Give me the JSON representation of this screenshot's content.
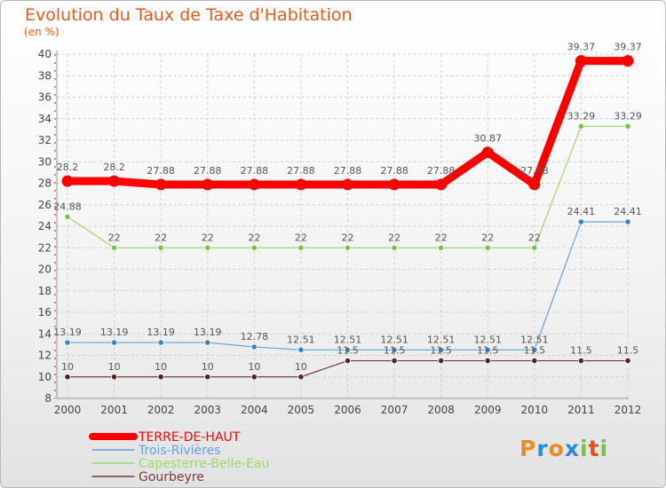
{
  "header": {
    "title": "Evolution du Taux de Taxe d'Habitation",
    "unit": "(en %)"
  },
  "logo": {
    "letters": [
      "P",
      "r",
      "o",
      "x",
      "i",
      "t",
      "i"
    ],
    "colors": [
      "#f08a1e",
      "#2e8bd8",
      "#f08a1e",
      "#2e8bd8",
      "#7cc242",
      "#e94e1b",
      "#7cc242"
    ]
  },
  "chart_data": {
    "type": "line",
    "title": "Evolution du Taux de Taxe d'Habitation",
    "ylabel": "(en %)",
    "xlabel": "",
    "x": [
      "2000",
      "2001",
      "2002",
      "2003",
      "2004",
      "2005",
      "2006",
      "2007",
      "2008",
      "2009",
      "2010",
      "2011",
      "2012"
    ],
    "ylim": [
      8,
      40
    ],
    "yticks": [
      8,
      10,
      12,
      14,
      16,
      18,
      20,
      22,
      24,
      26,
      28,
      30,
      32,
      34,
      36,
      38,
      40
    ],
    "grid": true,
    "legend_position": "bottom-left",
    "series": [
      {
        "name": "TERRE-DE-HAUT",
        "color": "#ff0000",
        "emphasis": true,
        "values": [
          28.2,
          28.2,
          27.88,
          27.88,
          27.88,
          27.88,
          27.88,
          27.88,
          27.88,
          30.87,
          27.88,
          39.37,
          39.37
        ],
        "labels": [
          "28.2",
          "28.2",
          "27.88",
          "27.88",
          "27.88",
          "27.88",
          "27.88",
          "27.88",
          "27.88",
          "30.87",
          "27.88",
          "39.37",
          "39.37"
        ]
      },
      {
        "name": "Trois-Rivières",
        "color": "#6a9fd4",
        "point_color": "#3b7fc4",
        "emphasis": false,
        "values": [
          13.19,
          13.19,
          13.19,
          13.19,
          12.78,
          12.51,
          12.51,
          12.51,
          12.51,
          12.51,
          12.51,
          24.41,
          24.41
        ],
        "labels": [
          "13.19",
          "13.19",
          "13.19",
          "13.19",
          "12.78",
          "12.51",
          "12.51",
          "12.51",
          "12.51",
          "12.51",
          "12.51",
          "24.41",
          "24.41"
        ]
      },
      {
        "name": "Capesterre-Belle-Eau",
        "color": "#9ed86b",
        "point_color": "#7cc242",
        "emphasis": false,
        "values": [
          24.88,
          22,
          22,
          22,
          22,
          22,
          22,
          22,
          22,
          22,
          22,
          33.29,
          33.29
        ],
        "labels": [
          "24.88",
          "22",
          "22",
          "22",
          "22",
          "22",
          "22",
          "22",
          "22",
          "22",
          "22",
          "33.29",
          "33.29"
        ]
      },
      {
        "name": "Gourbeyre",
        "color": "#7a3b3b",
        "point_color": "#5c1f1f",
        "emphasis": false,
        "values": [
          10,
          10,
          10,
          10,
          10,
          10,
          11.5,
          11.5,
          11.5,
          11.5,
          11.5,
          11.5,
          11.5
        ],
        "labels": [
          "10",
          "10",
          "10",
          "10",
          "10",
          "10",
          "11.5",
          "11.5",
          "11.5",
          "11.5",
          "11.5",
          "11.5",
          "11.5"
        ]
      }
    ]
  }
}
